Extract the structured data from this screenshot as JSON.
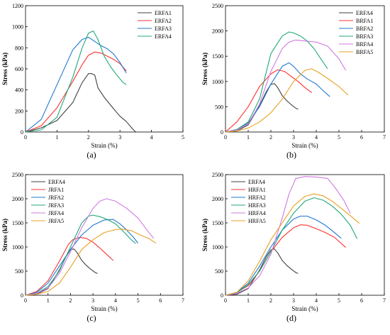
{
  "chart_data": [
    {
      "type": "line",
      "panel_label": "(a)",
      "xlabel": "Strain (%)",
      "ylabel": "Stress (kPa)",
      "xlim": [
        0,
        5
      ],
      "ylim": [
        0,
        1200
      ],
      "xticks": [
        "0",
        "1",
        "2",
        "3",
        "4",
        "5"
      ],
      "yticks": [
        "0",
        "200",
        "400",
        "600",
        "800",
        "1000",
        "1200"
      ],
      "grid": false,
      "legend": "top-right",
      "series": [
        {
          "name": "ERFA1",
          "color": "#404040",
          "x": [
            0,
            0.5,
            1.0,
            1.5,
            1.8,
            2.0,
            2.1,
            2.2,
            2.3,
            2.5,
            2.8,
            3.0,
            3.2,
            3.4,
            3.5
          ],
          "y": [
            0,
            40,
            110,
            280,
            470,
            555,
            555,
            540,
            420,
            330,
            220,
            150,
            100,
            30,
            0
          ]
        },
        {
          "name": "ERFA2",
          "color": "#ff3030",
          "x": [
            0,
            0.5,
            1.0,
            1.5,
            1.8,
            2.0,
            2.2,
            2.4,
            2.6,
            2.8,
            3.0,
            3.2
          ],
          "y": [
            0,
            60,
            230,
            480,
            640,
            730,
            760,
            750,
            720,
            690,
            650,
            580
          ]
        },
        {
          "name": "ERFA3",
          "color": "#1f77d0",
          "x": [
            0,
            0.5,
            1.0,
            1.5,
            1.8,
            2.0,
            2.2,
            2.4,
            2.6,
            2.8,
            3.0,
            3.2
          ],
          "y": [
            0,
            120,
            450,
            780,
            880,
            900,
            860,
            820,
            790,
            740,
            660,
            560
          ]
        },
        {
          "name": "ERFA4",
          "color": "#20a878",
          "x": [
            0,
            0.5,
            1.0,
            1.5,
            1.8,
            2.0,
            2.15,
            2.3,
            2.5,
            2.7,
            2.9,
            3.1,
            3.2
          ],
          "y": [
            0,
            20,
            140,
            520,
            800,
            940,
            960,
            880,
            720,
            620,
            540,
            470,
            450
          ]
        }
      ]
    },
    {
      "type": "line",
      "panel_label": "(b)",
      "xlabel": "Strain (%)",
      "ylabel": "Stress (kPa)",
      "xlim": [
        0,
        7
      ],
      "ylim": [
        0,
        2500
      ],
      "xticks": [
        "0",
        "1",
        "2",
        "3",
        "4",
        "5",
        "6",
        "7"
      ],
      "yticks": [
        "0",
        "500",
        "1000",
        "1500",
        "2000",
        "2500"
      ],
      "grid": false,
      "legend": "top-right",
      "series": [
        {
          "name": "ERFA4",
          "color": "#404040",
          "x": [
            0,
            0.5,
            1.0,
            1.5,
            1.8,
            2.0,
            2.15,
            2.3,
            2.5,
            2.7,
            2.9,
            3.1,
            3.2
          ],
          "y": [
            0,
            20,
            140,
            520,
            800,
            940,
            960,
            880,
            720,
            620,
            540,
            470,
            450
          ]
        },
        {
          "name": "BRFA1",
          "color": "#ff3030",
          "x": [
            0,
            0.5,
            1.0,
            1.5,
            2.0,
            2.3,
            2.6,
            2.9,
            3.2,
            3.5,
            3.8
          ],
          "y": [
            0,
            200,
            500,
            900,
            1150,
            1230,
            1200,
            1100,
            1000,
            880,
            780
          ]
        },
        {
          "name": "BRFA2",
          "color": "#1f77d0",
          "x": [
            0,
            0.5,
            1.0,
            1.5,
            2.0,
            2.5,
            2.8,
            3.0,
            3.3,
            3.6,
            4.0,
            4.3,
            4.6
          ],
          "y": [
            0,
            50,
            180,
            500,
            950,
            1300,
            1370,
            1300,
            1150,
            1050,
            950,
            820,
            700
          ]
        },
        {
          "name": "BRFA3",
          "color": "#20a878",
          "x": [
            0,
            0.5,
            1.0,
            1.5,
            2.0,
            2.5,
            2.8,
            3.0,
            3.3,
            3.6,
            3.9,
            4.2,
            4.5
          ],
          "y": [
            0,
            50,
            200,
            650,
            1550,
            1900,
            1980,
            1960,
            1900,
            1800,
            1650,
            1450,
            1250
          ]
        },
        {
          "name": "BRFA4",
          "color": "#d07ae0",
          "x": [
            0,
            0.5,
            1.0,
            1.5,
            2.0,
            2.5,
            2.8,
            3.1,
            3.5,
            4.0,
            4.5,
            5.0,
            5.3
          ],
          "y": [
            0,
            40,
            160,
            550,
            1200,
            1650,
            1780,
            1820,
            1800,
            1780,
            1700,
            1450,
            1220
          ]
        },
        {
          "name": "BRFA5",
          "color": "#e8a020",
          "x": [
            0,
            0.5,
            1.0,
            1.5,
            2.0,
            2.5,
            3.0,
            3.5,
            3.8,
            4.1,
            4.5,
            5.0,
            5.4
          ],
          "y": [
            0,
            20,
            80,
            200,
            380,
            650,
            1000,
            1220,
            1250,
            1180,
            1060,
            900,
            730
          ]
        }
      ]
    },
    {
      "type": "line",
      "panel_label": "(c)",
      "xlabel": "Strain (%)",
      "ylabel": "Stress (kPa)",
      "xlim": [
        0,
        7
      ],
      "ylim": [
        0,
        2500
      ],
      "xticks": [
        "0",
        "1",
        "2",
        "3",
        "4",
        "5",
        "6",
        "7"
      ],
      "yticks": [
        "0",
        "500",
        "1000",
        "1500",
        "2000",
        "2500"
      ],
      "grid": false,
      "legend": "top-left",
      "series": [
        {
          "name": "ERFA4",
          "color": "#404040",
          "x": [
            0,
            0.5,
            1.0,
            1.5,
            1.8,
            2.0,
            2.15,
            2.3,
            2.5,
            2.7,
            2.9,
            3.1,
            3.2
          ],
          "y": [
            0,
            20,
            140,
            520,
            800,
            940,
            960,
            880,
            720,
            620,
            540,
            470,
            450
          ]
        },
        {
          "name": "JRFA1",
          "color": "#ff3030",
          "x": [
            0,
            0.5,
            1.0,
            1.5,
            1.9,
            2.1,
            2.4,
            2.7,
            3.0,
            3.3,
            3.6,
            3.9
          ],
          "y": [
            0,
            80,
            300,
            700,
            1050,
            1150,
            1200,
            1180,
            1100,
            980,
            850,
            720
          ]
        },
        {
          "name": "JRFA2",
          "color": "#1f77d0",
          "x": [
            0,
            0.5,
            1.0,
            1.5,
            2.0,
            2.5,
            3.0,
            3.5,
            3.9,
            4.2,
            4.5,
            4.8,
            5.0
          ],
          "y": [
            0,
            60,
            250,
            600,
            950,
            1250,
            1450,
            1560,
            1570,
            1480,
            1350,
            1200,
            1080
          ]
        },
        {
          "name": "JRFA3",
          "color": "#20a878",
          "x": [
            0,
            0.5,
            1.0,
            1.5,
            2.0,
            2.5,
            2.8,
            3.0,
            3.3,
            3.6,
            4.0,
            4.4,
            4.7,
            4.9
          ],
          "y": [
            0,
            40,
            180,
            500,
            1000,
            1500,
            1640,
            1660,
            1630,
            1580,
            1480,
            1300,
            1150,
            1070
          ]
        },
        {
          "name": "JRFA4",
          "color": "#d07ae0",
          "x": [
            0,
            0.5,
            1.0,
            1.5,
            2.0,
            2.5,
            3.0,
            3.3,
            3.6,
            4.0,
            4.5,
            5.0,
            5.4,
            5.7
          ],
          "y": [
            0,
            40,
            150,
            450,
            900,
            1400,
            1800,
            1950,
            2000,
            1950,
            1800,
            1600,
            1350,
            1180
          ]
        },
        {
          "name": "JRFA5",
          "color": "#e8a020",
          "x": [
            0,
            0.5,
            1.0,
            1.5,
            2.0,
            2.5,
            3.0,
            3.5,
            4.0,
            4.3,
            4.7,
            5.1,
            5.5,
            5.8
          ],
          "y": [
            0,
            20,
            80,
            250,
            580,
            950,
            1150,
            1300,
            1360,
            1370,
            1340,
            1250,
            1170,
            1080
          ]
        }
      ]
    },
    {
      "type": "line",
      "panel_label": "(d)",
      "xlabel": "Strain (%)",
      "ylabel": "Stress (kPa)",
      "xlim": [
        0,
        7
      ],
      "ylim": [
        0,
        2500
      ],
      "xticks": [
        "0",
        "1",
        "2",
        "3",
        "4",
        "5",
        "6",
        "7"
      ],
      "yticks": [
        "0",
        "500",
        "1000",
        "1500",
        "2000",
        "2500"
      ],
      "grid": false,
      "legend": "top-left",
      "series": [
        {
          "name": "ERFA4",
          "color": "#404040",
          "x": [
            0,
            0.5,
            1.0,
            1.5,
            1.8,
            2.0,
            2.15,
            2.3,
            2.5,
            2.7,
            2.9,
            3.1,
            3.2
          ],
          "y": [
            0,
            20,
            140,
            520,
            800,
            940,
            960,
            880,
            720,
            620,
            540,
            470,
            450
          ]
        },
        {
          "name": "HRFA1",
          "color": "#ff3030",
          "x": [
            0,
            0.5,
            1.0,
            1.5,
            2.0,
            2.5,
            3.0,
            3.3,
            3.6,
            4.0,
            4.4,
            4.8,
            5.3
          ],
          "y": [
            0,
            60,
            200,
            500,
            900,
            1200,
            1400,
            1460,
            1450,
            1380,
            1300,
            1200,
            990
          ]
        },
        {
          "name": "HRFA2",
          "color": "#1f77d0",
          "x": [
            0,
            0.5,
            1.0,
            1.5,
            2.0,
            2.5,
            3.0,
            3.3,
            3.6,
            4.0,
            4.4,
            4.8,
            5.1
          ],
          "y": [
            0,
            60,
            250,
            600,
            1000,
            1350,
            1580,
            1640,
            1640,
            1560,
            1450,
            1300,
            1180
          ]
        },
        {
          "name": "HRFA3",
          "color": "#20a878",
          "x": [
            0,
            0.5,
            1.0,
            1.5,
            2.0,
            2.5,
            3.0,
            3.5,
            3.9,
            4.3,
            4.7,
            5.1,
            5.5,
            5.8
          ],
          "y": [
            0,
            50,
            220,
            500,
            900,
            1350,
            1700,
            1950,
            2020,
            1970,
            1850,
            1680,
            1450,
            1170
          ]
        },
        {
          "name": "HRFA4",
          "color": "#d07ae0",
          "x": [
            0,
            0.5,
            1.0,
            1.5,
            2.0,
            2.5,
            2.8,
            3.1,
            3.5,
            4.0,
            4.5,
            4.8,
            5.2,
            5.5
          ],
          "y": [
            0,
            40,
            150,
            400,
            850,
            1600,
            2100,
            2420,
            2460,
            2450,
            2420,
            2250,
            1980,
            1700
          ]
        },
        {
          "name": "HRFA5",
          "color": "#e8a020",
          "x": [
            0,
            0.5,
            1.0,
            1.5,
            2.0,
            2.5,
            3.0,
            3.5,
            3.9,
            4.3,
            4.7,
            5.1,
            5.5,
            5.9
          ],
          "y": [
            0,
            60,
            300,
            700,
            1150,
            1500,
            1850,
            2050,
            2100,
            2060,
            1950,
            1800,
            1650,
            1490
          ]
        }
      ]
    }
  ]
}
